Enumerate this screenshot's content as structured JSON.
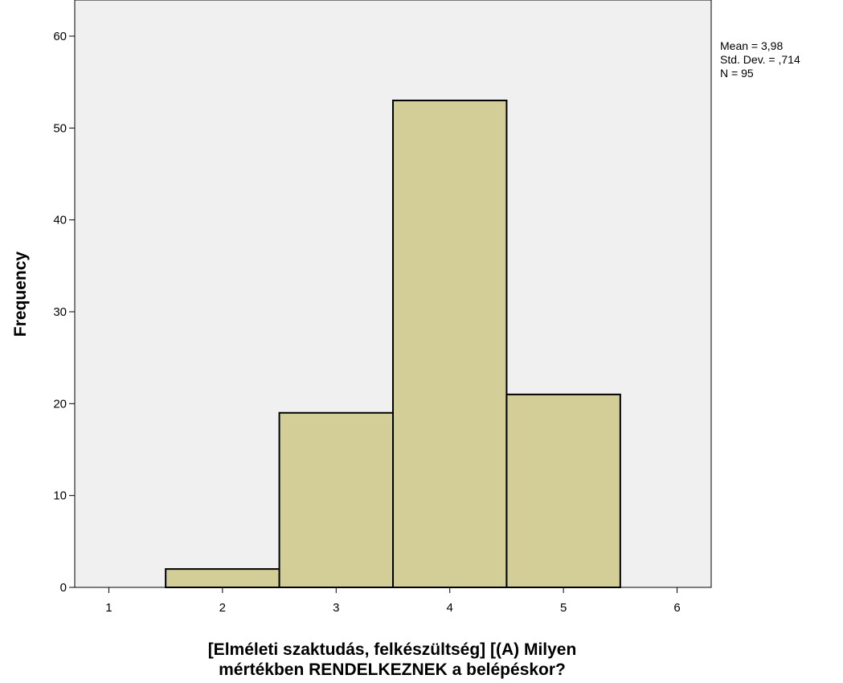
{
  "chart_data": {
    "type": "bar",
    "subtype": "histogram",
    "bins": [
      {
        "center": 2,
        "from": 1.5,
        "to": 2.5,
        "value": 2
      },
      {
        "center": 3,
        "from": 2.5,
        "to": 3.5,
        "value": 19
      },
      {
        "center": 4,
        "from": 3.5,
        "to": 4.5,
        "value": 53
      },
      {
        "center": 5,
        "from": 4.5,
        "to": 5.5,
        "value": 21
      }
    ],
    "x_ticks": [
      "1",
      "2",
      "3",
      "4",
      "5",
      "6"
    ],
    "y_ticks": [
      "0",
      "10",
      "20",
      "30",
      "40",
      "50",
      "60"
    ],
    "xlim": [
      0.7,
      6.3
    ],
    "ylim": [
      0,
      60
    ],
    "xlabel_lines": [
      "[Elméleti szaktudás, felkészültség] [(A) Milyen",
      "mértékben RENDELKEZNEK a belépéskor?"
    ],
    "ylabel": "Frequency",
    "stats": {
      "mean": "Mean = 3,98",
      "std": "Std. Dev. = ,714",
      "n": "N = 95"
    },
    "grid": false,
    "colors": {
      "plot_background": "#f0f0f0",
      "bar_fill": "#d3ce97",
      "bar_stroke": "#000000"
    }
  }
}
